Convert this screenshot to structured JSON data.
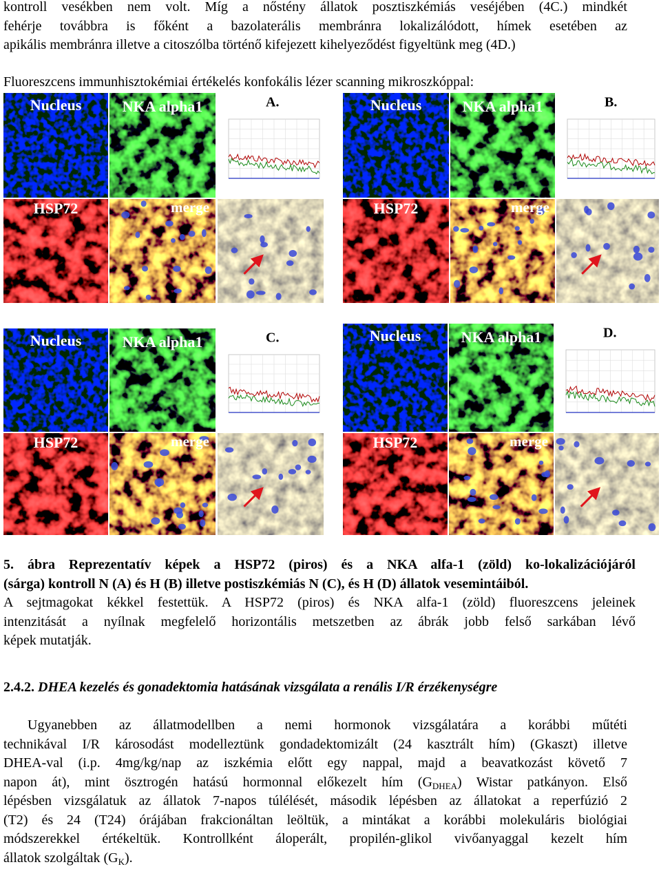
{
  "intro": {
    "lines": [
      "kontroll vesékben nem volt. Míg a nőstény állatok posztiszkémiás veséjében (4C.) mindkét",
      "fehérje továbbra is főként a bazolaterális membránra lokalizálódott, hímek esetében az",
      "apikális membránra illetve a citoszólba történő kifejezett kihelyeződést figyeltünk meg (4D.)"
    ],
    "figure_intro": "Fluoreszcens immunhisztokémiai értékelés konfokális lézer scanning mikroszkóppal:"
  },
  "figure": {
    "panels": [
      {
        "letter": "A.",
        "nucleus": "Nucleus",
        "nka": "NKA alpha1",
        "hsp": "HSP72",
        "merge": "merge"
      },
      {
        "letter": "B.",
        "nucleus": "Nucleus",
        "nka": "NKA alpha1",
        "hsp": "HSP72",
        "merge": "merge"
      },
      {
        "letter": "C.",
        "nucleus": "Nucleus",
        "nka": "NKA alpha1",
        "hsp": "HSP72",
        "merge": "merge"
      },
      {
        "letter": "D.",
        "nucleus": "Nucleus",
        "nka": "NKA alpha1",
        "hsp": "HSP72",
        "merge": "merge"
      }
    ]
  },
  "caption": {
    "bold_lines": [
      "5. ábra Reprezentatív képek a HSP72 (piros) és a NKA alfa-1 (zöld) ko-lokalizációjáról",
      "(sárga) kontroll N (A) és H (B) illetve postiszkémiás N (C), és H (D) állatok vesemintáiból."
    ],
    "lines": [
      "A sejtmagokat kékkel festettük. A HSP72 (piros) és NKA alfa-1 (zöld) fluoreszcens jeleinek",
      "intenzitását a nyílnak megfelelő horizontális metszetben az ábrák jobb felső sarkában lévő",
      "képek mutatják."
    ]
  },
  "section": {
    "number": "2.4.2.",
    "title": "DHEA kezelés és gonadektomia hatásának vizsgálata a renális I/R érzékenységre"
  },
  "body": {
    "lines": [
      [
        {
          "t": "Ugyanebben az állatmodellben a nemi hormonok vizsgálatára a korábbi műtéti"
        }
      ],
      [
        {
          "t": "technikával I/R károsodást modelleztünk gondadektomizált (24 kasztrált hím) (Gkaszt) illetve"
        }
      ],
      [
        {
          "t": "DHEA-val (i.p. 4mg/kg/nap az iszkémia előtt egy nappal, majd a beavatkozást követő 7"
        }
      ],
      [
        {
          "t": "napon át), mint ösztrogén hatású hormonnal előkezelt hím (G"
        },
        {
          "sub": "DHEA"
        },
        {
          "t": ") Wistar patkányon. Első"
        }
      ],
      [
        {
          "t": "lépésben vizsgálatuk az állatok 7-napos túlélését, második lépésben az állatokat a reperfúzió 2"
        }
      ],
      [
        {
          "t": "(T2) és 24 (T24) órájában frakcionáltan leöltük, a mintákat a korábbi molekuláris biológiai"
        }
      ],
      [
        {
          "t": "módszerekkel értékeltük. Kontrollként áloperált, propilén-glikol vivőanyaggal kezelt hím"
        }
      ],
      [
        {
          "t": "állatok szolgáltak (G"
        },
        {
          "sub": "K"
        },
        {
          "t": ")."
        }
      ]
    ]
  }
}
